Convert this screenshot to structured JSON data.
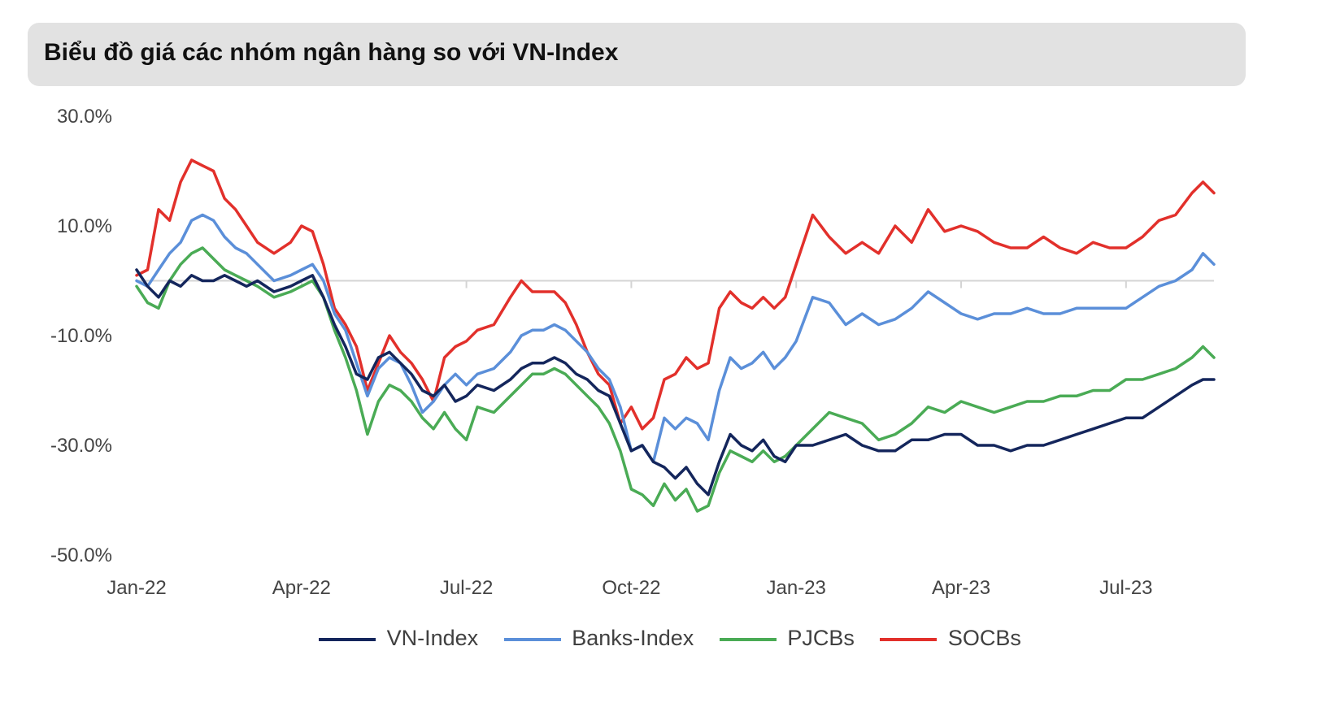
{
  "header": {
    "title": "Biểu đồ giá các nhóm ngân hàng so với VN-Index"
  },
  "chart_data": {
    "type": "line",
    "title": "Biểu đồ giá các nhóm ngân hàng so với VN-Index",
    "xlabel": "",
    "ylabel": "",
    "ylim": [
      -50,
      30
    ],
    "xlim": [
      0,
      19.6
    ],
    "grid": false,
    "zero_line": true,
    "legend_position": "bottom-center",
    "y_ticks": [
      30,
      10,
      -10,
      -30,
      -50
    ],
    "y_tick_labels": [
      "30.0%",
      "10.0%",
      "-10.0%",
      "-30.0%",
      "-50.0%"
    ],
    "x_ticks": [
      0,
      3,
      6,
      9,
      12,
      15,
      18
    ],
    "x_tick_labels": [
      "Jan-22",
      "Apr-22",
      "Jul-22",
      "Oct-22",
      "Jan-23",
      "Apr-23",
      "Jul-23"
    ],
    "x_unit": "months since Jan-22",
    "series": [
      {
        "name": "VN-Index",
        "color": "#14265c",
        "x": [
          0,
          0.2,
          0.4,
          0.6,
          0.8,
          1.0,
          1.2,
          1.4,
          1.6,
          1.8,
          2.0,
          2.2,
          2.5,
          2.8,
          3.0,
          3.2,
          3.4,
          3.6,
          3.8,
          4.0,
          4.2,
          4.4,
          4.6,
          4.8,
          5.0,
          5.2,
          5.4,
          5.6,
          5.8,
          6.0,
          6.2,
          6.5,
          6.8,
          7.0,
          7.2,
          7.4,
          7.6,
          7.8,
          8.0,
          8.2,
          8.4,
          8.6,
          8.8,
          9.0,
          9.2,
          9.4,
          9.6,
          9.8,
          10.0,
          10.2,
          10.4,
          10.6,
          10.8,
          11.0,
          11.2,
          11.4,
          11.6,
          11.8,
          12.0,
          12.3,
          12.6,
          12.9,
          13.2,
          13.5,
          13.8,
          14.1,
          14.4,
          14.7,
          15.0,
          15.3,
          15.6,
          15.9,
          16.2,
          16.5,
          16.8,
          17.1,
          17.4,
          17.7,
          18.0,
          18.3,
          18.6,
          18.9,
          19.2,
          19.4,
          19.6
        ],
        "values": [
          2,
          -1,
          -3,
          0,
          -1,
          1,
          0,
          0,
          1,
          0,
          -1,
          0,
          -2,
          -1,
          0,
          1,
          -3,
          -8,
          -12,
          -17,
          -18,
          -14,
          -13,
          -15,
          -17,
          -20,
          -21,
          -19,
          -22,
          -21,
          -19,
          -20,
          -18,
          -16,
          -15,
          -15,
          -14,
          -15,
          -17,
          -18,
          -20,
          -21,
          -26,
          -31,
          -30,
          -33,
          -34,
          -36,
          -34,
          -37,
          -39,
          -33,
          -28,
          -30,
          -31,
          -29,
          -32,
          -33,
          -30,
          -30,
          -29,
          -28,
          -30,
          -31,
          -31,
          -29,
          -29,
          -28,
          -28,
          -30,
          -30,
          -31,
          -30,
          -30,
          -29,
          -28,
          -27,
          -26,
          -25,
          -25,
          -23,
          -21,
          -19,
          -18,
          -18
        ]
      },
      {
        "name": "Banks-Index",
        "color": "#5b8fd9",
        "x": [
          0,
          0.2,
          0.4,
          0.6,
          0.8,
          1.0,
          1.2,
          1.4,
          1.6,
          1.8,
          2.0,
          2.2,
          2.5,
          2.8,
          3.0,
          3.2,
          3.4,
          3.6,
          3.8,
          4.0,
          4.2,
          4.4,
          4.6,
          4.8,
          5.0,
          5.2,
          5.4,
          5.6,
          5.8,
          6.0,
          6.2,
          6.5,
          6.8,
          7.0,
          7.2,
          7.4,
          7.6,
          7.8,
          8.0,
          8.2,
          8.4,
          8.6,
          8.8,
          9.0,
          9.2,
          9.4,
          9.6,
          9.8,
          10.0,
          10.2,
          10.4,
          10.6,
          10.8,
          11.0,
          11.2,
          11.4,
          11.6,
          11.8,
          12.0,
          12.3,
          12.6,
          12.9,
          13.2,
          13.5,
          13.8,
          14.1,
          14.4,
          14.7,
          15.0,
          15.3,
          15.6,
          15.9,
          16.2,
          16.5,
          16.8,
          17.1,
          17.4,
          17.7,
          18.0,
          18.3,
          18.6,
          18.9,
          19.2,
          19.4,
          19.6
        ],
        "values": [
          0,
          -1,
          2,
          5,
          7,
          11,
          12,
          11,
          8,
          6,
          5,
          3,
          0,
          1,
          2,
          3,
          0,
          -6,
          -9,
          -15,
          -21,
          -16,
          -14,
          -15,
          -19,
          -24,
          -22,
          -19,
          -17,
          -19,
          -17,
          -16,
          -13,
          -10,
          -9,
          -9,
          -8,
          -9,
          -11,
          -13,
          -16,
          -18,
          -23,
          -31,
          -30,
          -33,
          -25,
          -27,
          -25,
          -26,
          -29,
          -20,
          -14,
          -16,
          -15,
          -13,
          -16,
          -14,
          -11,
          -3,
          -4,
          -8,
          -6,
          -8,
          -7,
          -5,
          -2,
          -4,
          -6,
          -7,
          -6,
          -6,
          -5,
          -6,
          -6,
          -5,
          -5,
          -5,
          -5,
          -3,
          -1,
          0,
          2,
          5,
          3
        ]
      },
      {
        "name": "PJCBs",
        "color": "#4aab55",
        "x": [
          0,
          0.2,
          0.4,
          0.6,
          0.8,
          1.0,
          1.2,
          1.4,
          1.6,
          1.8,
          2.0,
          2.2,
          2.5,
          2.8,
          3.0,
          3.2,
          3.4,
          3.6,
          3.8,
          4.0,
          4.2,
          4.4,
          4.6,
          4.8,
          5.0,
          5.2,
          5.4,
          5.6,
          5.8,
          6.0,
          6.2,
          6.5,
          6.8,
          7.0,
          7.2,
          7.4,
          7.6,
          7.8,
          8.0,
          8.2,
          8.4,
          8.6,
          8.8,
          9.0,
          9.2,
          9.4,
          9.6,
          9.8,
          10.0,
          10.2,
          10.4,
          10.6,
          10.8,
          11.0,
          11.2,
          11.4,
          11.6,
          11.8,
          12.0,
          12.3,
          12.6,
          12.9,
          13.2,
          13.5,
          13.8,
          14.1,
          14.4,
          14.7,
          15.0,
          15.3,
          15.6,
          15.9,
          16.2,
          16.5,
          16.8,
          17.1,
          17.4,
          17.7,
          18.0,
          18.3,
          18.6,
          18.9,
          19.2,
          19.4,
          19.6
        ],
        "values": [
          -1,
          -4,
          -5,
          0,
          3,
          5,
          6,
          4,
          2,
          1,
          0,
          -1,
          -3,
          -2,
          -1,
          0,
          -3,
          -9,
          -14,
          -20,
          -28,
          -22,
          -19,
          -20,
          -22,
          -25,
          -27,
          -24,
          -27,
          -29,
          -23,
          -24,
          -21,
          -19,
          -17,
          -17,
          -16,
          -17,
          -19,
          -21,
          -23,
          -26,
          -31,
          -38,
          -39,
          -41,
          -37,
          -40,
          -38,
          -42,
          -41,
          -35,
          -31,
          -32,
          -33,
          -31,
          -33,
          -32,
          -30,
          -27,
          -24,
          -25,
          -26,
          -29,
          -28,
          -26,
          -23,
          -24,
          -22,
          -23,
          -24,
          -23,
          -22,
          -22,
          -21,
          -21,
          -20,
          -20,
          -18,
          -18,
          -17,
          -16,
          -14,
          -12,
          -14
        ]
      },
      {
        "name": "SOCBs",
        "color": "#e2302b",
        "x": [
          0,
          0.2,
          0.4,
          0.6,
          0.8,
          1.0,
          1.2,
          1.4,
          1.6,
          1.8,
          2.0,
          2.2,
          2.5,
          2.8,
          3.0,
          3.2,
          3.4,
          3.6,
          3.8,
          4.0,
          4.2,
          4.4,
          4.6,
          4.8,
          5.0,
          5.2,
          5.4,
          5.6,
          5.8,
          6.0,
          6.2,
          6.5,
          6.8,
          7.0,
          7.2,
          7.4,
          7.6,
          7.8,
          8.0,
          8.2,
          8.4,
          8.6,
          8.8,
          9.0,
          9.2,
          9.4,
          9.6,
          9.8,
          10.0,
          10.2,
          10.4,
          10.6,
          10.8,
          11.0,
          11.2,
          11.4,
          11.6,
          11.8,
          12.0,
          12.3,
          12.6,
          12.9,
          13.2,
          13.5,
          13.8,
          14.1,
          14.4,
          14.7,
          15.0,
          15.3,
          15.6,
          15.9,
          16.2,
          16.5,
          16.8,
          17.1,
          17.4,
          17.7,
          18.0,
          18.3,
          18.6,
          18.9,
          19.2,
          19.4,
          19.6
        ],
        "values": [
          1,
          2,
          13,
          11,
          18,
          22,
          21,
          20,
          15,
          13,
          10,
          7,
          5,
          7,
          10,
          9,
          3,
          -5,
          -8,
          -12,
          -20,
          -15,
          -10,
          -13,
          -15,
          -18,
          -22,
          -14,
          -12,
          -11,
          -9,
          -8,
          -3,
          0,
          -2,
          -2,
          -2,
          -4,
          -8,
          -13,
          -17,
          -19,
          -26,
          -23,
          -27,
          -25,
          -18,
          -17,
          -14,
          -16,
          -15,
          -5,
          -2,
          -4,
          -5,
          -3,
          -5,
          -3,
          3,
          12,
          8,
          5,
          7,
          5,
          10,
          7,
          13,
          9,
          10,
          9,
          7,
          6,
          6,
          8,
          6,
          5,
          7,
          6,
          6,
          8,
          11,
          12,
          16,
          18,
          16
        ]
      }
    ]
  }
}
